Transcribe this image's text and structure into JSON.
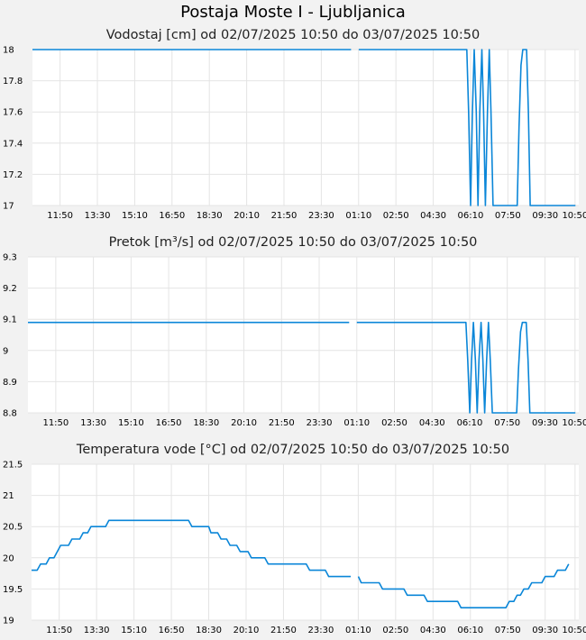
{
  "page": {
    "title": "Postaja Moste I - Ljubljanica"
  },
  "colors": {
    "series": "#0a86d8",
    "background": "#f2f2f2",
    "plot": "#ffffff",
    "grid": "#e4e4e4"
  },
  "chart_data": [
    {
      "type": "line",
      "title": "Vodostaj [cm] od 02/07/2025 10:50 do 03/07/2025 10:50",
      "xlabel": "",
      "ylabel": "",
      "x_range": [
        10.6,
        35.0
      ],
      "ylim": [
        17,
        18
      ],
      "yticks": [
        "17",
        "17.2",
        "17.4",
        "17.6",
        "17.8",
        "18"
      ],
      "ytick_values": [
        17,
        17.2,
        17.4,
        17.6,
        17.8,
        18
      ],
      "xticks": [
        "11:50",
        "13:30",
        "15:10",
        "16:50",
        "18:30",
        "20:10",
        "21:50",
        "23:30",
        "01:10",
        "02:50",
        "04:30",
        "06:10",
        "07:50",
        "09:30",
        "10:50"
      ],
      "xtick_values": [
        11.833,
        13.5,
        15.167,
        16.833,
        18.5,
        20.167,
        21.833,
        23.5,
        25.167,
        26.833,
        28.5,
        30.167,
        31.833,
        33.5,
        34.833
      ],
      "grid": true,
      "segments": [
        [
          [
            10.6,
            18
          ],
          [
            24.83,
            18
          ]
        ],
        [
          [
            25.17,
            18
          ],
          [
            30.0,
            18
          ],
          [
            30.08,
            17.6
          ],
          [
            30.17,
            17.0
          ],
          [
            30.25,
            17.6
          ],
          [
            30.33,
            18
          ],
          [
            30.42,
            17.6
          ],
          [
            30.5,
            17.0
          ],
          [
            30.58,
            17.6
          ],
          [
            30.67,
            18
          ],
          [
            30.75,
            17.6
          ],
          [
            30.83,
            17.0
          ],
          [
            30.92,
            17.6
          ],
          [
            31.0,
            18
          ],
          [
            31.08,
            17.6
          ],
          [
            31.17,
            17.0
          ],
          [
            32.25,
            17.0
          ],
          [
            32.33,
            17.5
          ],
          [
            32.42,
            17.9
          ],
          [
            32.5,
            18
          ],
          [
            32.67,
            18
          ],
          [
            32.75,
            17.6
          ],
          [
            32.83,
            17.0
          ],
          [
            34.85,
            17.0
          ]
        ]
      ]
    },
    {
      "type": "line",
      "title": "Pretok [m³/s] od 02/07/2025 10:50 do 03/07/2025 10:50",
      "xlabel": "",
      "ylabel": "",
      "x_range": [
        10.6,
        35.0
      ],
      "ylim": [
        8.8,
        9.3
      ],
      "yticks": [
        "8.8",
        "8.9",
        "9",
        "9.1",
        "9.2",
        "9.3"
      ],
      "ytick_values": [
        8.8,
        8.9,
        9.0,
        9.1,
        9.2,
        9.3
      ],
      "xticks": [
        "11:50",
        "13:30",
        "15:10",
        "16:50",
        "18:30",
        "20:10",
        "21:50",
        "23:30",
        "01:10",
        "02:50",
        "04:30",
        "06:10",
        "07:50",
        "09:30",
        "10:50"
      ],
      "xtick_values": [
        11.833,
        13.5,
        15.167,
        16.833,
        18.5,
        20.167,
        21.833,
        23.5,
        25.167,
        26.833,
        28.5,
        30.167,
        31.833,
        33.5,
        34.833
      ],
      "grid": true,
      "segments": [
        [
          [
            10.6,
            9.09
          ],
          [
            24.83,
            9.09
          ]
        ],
        [
          [
            25.17,
            9.09
          ],
          [
            30.0,
            9.09
          ],
          [
            30.08,
            8.97
          ],
          [
            30.17,
            8.8
          ],
          [
            30.25,
            8.97
          ],
          [
            30.33,
            9.09
          ],
          [
            30.42,
            8.97
          ],
          [
            30.5,
            8.8
          ],
          [
            30.58,
            8.97
          ],
          [
            30.67,
            9.09
          ],
          [
            30.75,
            8.97
          ],
          [
            30.83,
            8.8
          ],
          [
            30.92,
            8.97
          ],
          [
            31.0,
            9.09
          ],
          [
            31.08,
            8.97
          ],
          [
            31.17,
            8.8
          ],
          [
            32.25,
            8.8
          ],
          [
            32.33,
            8.94
          ],
          [
            32.42,
            9.06
          ],
          [
            32.5,
            9.09
          ],
          [
            32.67,
            9.09
          ],
          [
            32.75,
            8.97
          ],
          [
            32.83,
            8.8
          ],
          [
            34.85,
            8.8
          ]
        ]
      ]
    },
    {
      "type": "line",
      "title": "Temperatura vode [°C] od 02/07/2025 10:50 do 03/07/2025 10:50",
      "xlabel": "",
      "ylabel": "",
      "x_range": [
        10.6,
        35.0
      ],
      "ylim": [
        19,
        21.5
      ],
      "yticks": [
        "19",
        "19.5",
        "20",
        "20.5",
        "21",
        "21.5"
      ],
      "ytick_values": [
        19,
        19.5,
        20,
        20.5,
        21,
        21.5
      ],
      "xticks": [
        "11:50",
        "13:30",
        "15:10",
        "16:50",
        "18:30",
        "20:10",
        "21:50",
        "23:30",
        "01:10",
        "02:50",
        "04:30",
        "06:10",
        "07:50",
        "09:30",
        "10:50"
      ],
      "xtick_values": [
        11.833,
        13.5,
        15.167,
        16.833,
        18.5,
        20.167,
        21.833,
        23.5,
        25.167,
        26.833,
        28.5,
        30.167,
        31.833,
        33.5,
        34.833
      ],
      "grid": true,
      "segments": [
        [
          [
            10.6,
            19.8
          ],
          [
            10.85,
            19.8
          ],
          [
            11.0,
            19.9
          ],
          [
            11.25,
            19.9
          ],
          [
            11.4,
            20.0
          ],
          [
            11.6,
            20.0
          ],
          [
            11.75,
            20.1
          ],
          [
            11.9,
            20.2
          ],
          [
            12.25,
            20.2
          ],
          [
            12.4,
            20.3
          ],
          [
            12.75,
            20.3
          ],
          [
            12.9,
            20.4
          ],
          [
            13.1,
            20.4
          ],
          [
            13.25,
            20.5
          ],
          [
            13.9,
            20.5
          ],
          [
            14.05,
            20.6
          ],
          [
            17.6,
            20.6
          ],
          [
            17.75,
            20.5
          ],
          [
            18.5,
            20.5
          ],
          [
            18.6,
            20.4
          ],
          [
            18.9,
            20.4
          ],
          [
            19.05,
            20.3
          ],
          [
            19.3,
            20.3
          ],
          [
            19.45,
            20.2
          ],
          [
            19.75,
            20.2
          ],
          [
            19.9,
            20.1
          ],
          [
            20.25,
            20.1
          ],
          [
            20.4,
            20.0
          ],
          [
            21.0,
            20.0
          ],
          [
            21.15,
            19.9
          ],
          [
            22.85,
            19.9
          ],
          [
            23.0,
            19.8
          ],
          [
            23.7,
            19.8
          ],
          [
            23.85,
            19.7
          ],
          [
            24.83,
            19.7
          ]
        ],
        [
          [
            25.17,
            19.7
          ],
          [
            25.3,
            19.6
          ],
          [
            26.1,
            19.6
          ],
          [
            26.25,
            19.5
          ],
          [
            27.2,
            19.5
          ],
          [
            27.35,
            19.4
          ],
          [
            28.1,
            19.4
          ],
          [
            28.25,
            19.3
          ],
          [
            29.6,
            19.3
          ],
          [
            29.75,
            19.2
          ],
          [
            31.75,
            19.2
          ],
          [
            31.9,
            19.3
          ],
          [
            32.1,
            19.3
          ],
          [
            32.25,
            19.4
          ],
          [
            32.4,
            19.4
          ],
          [
            32.55,
            19.5
          ],
          [
            32.75,
            19.5
          ],
          [
            32.9,
            19.6
          ],
          [
            33.35,
            19.6
          ],
          [
            33.5,
            19.7
          ],
          [
            33.9,
            19.7
          ],
          [
            34.05,
            19.8
          ],
          [
            34.4,
            19.8
          ],
          [
            34.55,
            19.9
          ]
        ]
      ]
    }
  ]
}
